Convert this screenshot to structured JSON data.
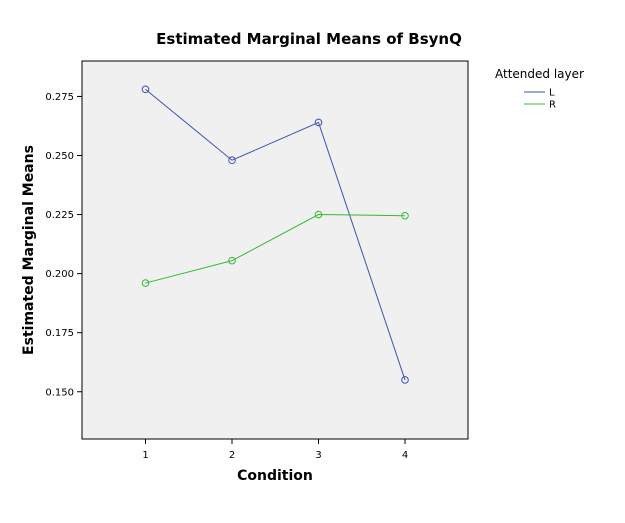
{
  "chart_data": {
    "type": "line",
    "title": "Estimated Marginal Means of BsynQ",
    "xlabel": "Condition",
    "ylabel": "Estimated Marginal Means",
    "categories": [
      "1",
      "2",
      "3",
      "4"
    ],
    "ylim": [
      0.13,
      0.29
    ],
    "yticks": [
      "0.150",
      "0.175",
      "0.200",
      "0.225",
      "0.250",
      "0.275"
    ],
    "grid": false,
    "legend": {
      "title": "Attended layer",
      "placement": "top-right"
    },
    "series": [
      {
        "name": "L",
        "color": "#3f51b5",
        "values": [
          0.278,
          0.248,
          0.264,
          0.155
        ]
      },
      {
        "name": "R",
        "color": "#33bb33",
        "values": [
          0.196,
          0.2055,
          0.225,
          0.2245
        ]
      }
    ],
    "plot_background": "#f0f0f0"
  }
}
